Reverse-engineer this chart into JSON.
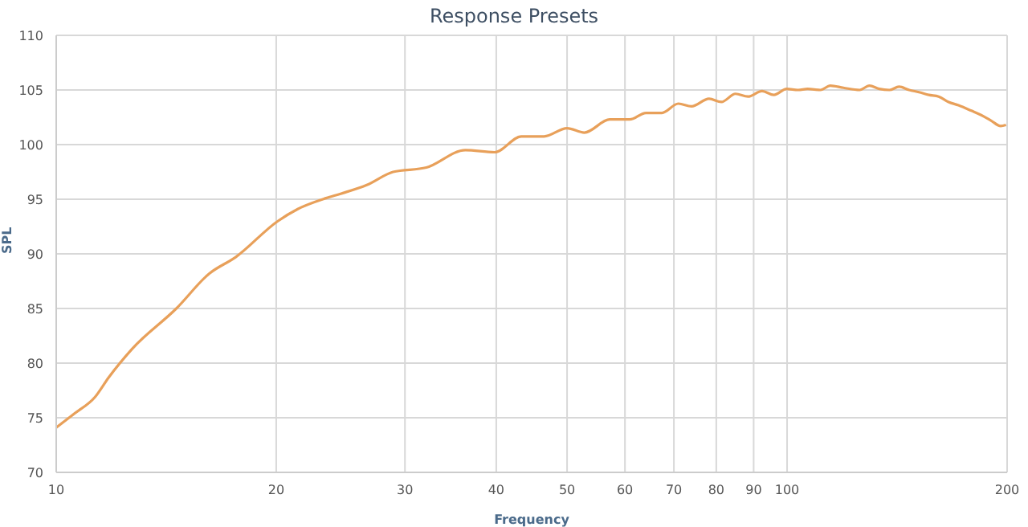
{
  "chart_data": {
    "type": "line",
    "title": "Response Presets",
    "xlabel": "Frequency",
    "ylabel": "SPL",
    "log": "x",
    "grid": true,
    "legend": false,
    "marker": "none",
    "line_style": "solid",
    "xlim": [
      10,
      200
    ],
    "xticks": [
      10,
      20,
      30,
      40,
      50,
      60,
      70,
      80,
      90,
      100,
      200
    ],
    "ylim": [
      70,
      110
    ],
    "yticks": [
      70,
      75,
      80,
      85,
      90,
      95,
      100,
      105,
      110
    ],
    "series": [
      {
        "color": "#e8a05a",
        "x": [
          10,
          10.6,
          11.3,
          11.8,
          12.7,
          14.6,
          16.2,
          17.6,
          20.1,
          21.4,
          23.4,
          24.5,
          26.6,
          28.9,
          32.1,
          36.3,
          39.8,
          43.3,
          46.5,
          50,
          52.8,
          57.2,
          60.9,
          64.1,
          67.4,
          71,
          74,
          78.2,
          81.3,
          85,
          88.4,
          92.4,
          95.9,
          99.9,
          103.5,
          106.7,
          111.1,
          114.6,
          119.4,
          125.7,
          129.6,
          133.7,
          138,
          142.3,
          146.9,
          151.5,
          156.3,
          161.2,
          166.3,
          171.6,
          178.7,
          184.3,
          190.1,
          196,
          199.3
        ],
        "values": [
          74.1,
          75.4,
          76.9,
          78.7,
          81.3,
          85,
          88.2,
          89.7,
          93,
          94.1,
          95.1,
          95.5,
          96.3,
          97.5,
          97.9,
          99.5,
          99.3,
          100.75,
          100.75,
          101.5,
          101.1,
          102.3,
          102.3,
          102.9,
          102.9,
          103.75,
          103.5,
          104.2,
          103.9,
          104.65,
          104.4,
          104.9,
          104.55,
          105.1,
          105,
          105.1,
          105,
          105.4,
          105.2,
          105,
          105.4,
          105.1,
          105,
          105.3,
          105,
          104.8,
          104.55,
          104.4,
          103.9,
          103.6,
          103.1,
          102.7,
          102.2,
          101.7,
          101.8
        ]
      }
    ]
  }
}
